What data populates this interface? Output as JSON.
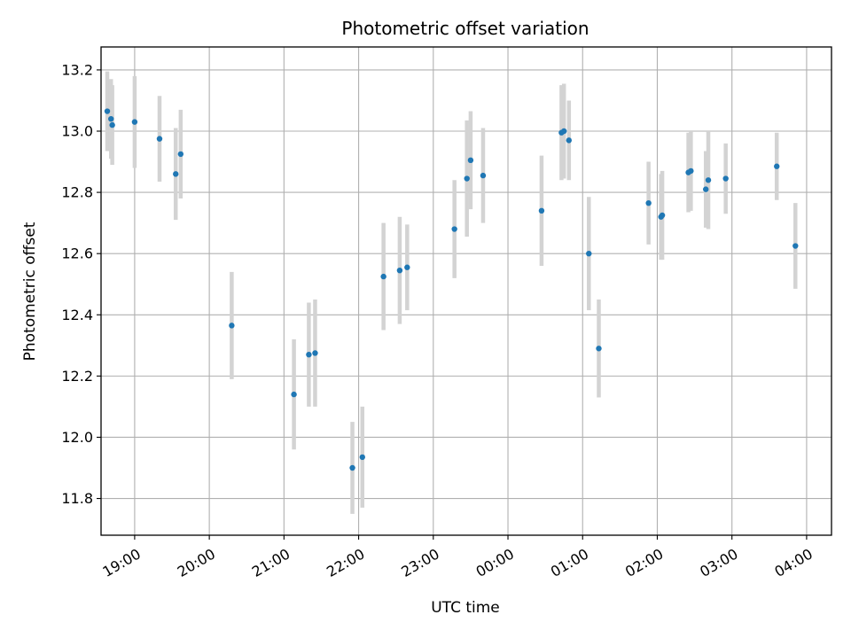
{
  "chart_data": {
    "type": "scatter",
    "title": "Photometric offset variation",
    "xlabel": "UTC time",
    "ylabel": "Photometric offset",
    "grid": true,
    "colors": {
      "point": "#1f77b4",
      "errorbar": "#d3d3d3",
      "grid": "#b0b0b0"
    },
    "xlim": [
      "18:33",
      "04:20"
    ],
    "ylim": [
      11.68,
      13.275
    ],
    "x_ticks": [
      "19:00",
      "20:00",
      "21:00",
      "22:00",
      "23:00",
      "00:00",
      "01:00",
      "02:00",
      "03:00",
      "04:00"
    ],
    "y_ticks": [
      "11.8",
      "12.0",
      "12.2",
      "12.4",
      "12.6",
      "12.8",
      "13.0",
      "13.2"
    ],
    "points": [
      {
        "x": "18:38",
        "y": 13.065,
        "yerr": 0.13
      },
      {
        "x": "18:41",
        "y": 13.04,
        "yerr": 0.13
      },
      {
        "x": "18:42",
        "y": 13.02,
        "yerr": 0.13
      },
      {
        "x": "19:00",
        "y": 13.03,
        "yerr": 0.15
      },
      {
        "x": "19:20",
        "y": 12.975,
        "yerr": 0.14
      },
      {
        "x": "19:33",
        "y": 12.86,
        "yerr": 0.15
      },
      {
        "x": "19:37",
        "y": 12.925,
        "yerr": 0.145
      },
      {
        "x": "20:18",
        "y": 12.365,
        "yerr": 0.175
      },
      {
        "x": "21:08",
        "y": 12.14,
        "yerr": 0.18
      },
      {
        "x": "21:20",
        "y": 12.27,
        "yerr": 0.17
      },
      {
        "x": "21:25",
        "y": 12.275,
        "yerr": 0.175
      },
      {
        "x": "21:55",
        "y": 11.9,
        "yerr": 0.15
      },
      {
        "x": "22:03",
        "y": 11.935,
        "yerr": 0.165
      },
      {
        "x": "22:20",
        "y": 12.525,
        "yerr": 0.175
      },
      {
        "x": "22:33",
        "y": 12.545,
        "yerr": 0.175
      },
      {
        "x": "22:39",
        "y": 12.555,
        "yerr": 0.14
      },
      {
        "x": "23:17",
        "y": 12.68,
        "yerr": 0.16
      },
      {
        "x": "23:27",
        "y": 12.845,
        "yerr": 0.19
      },
      {
        "x": "23:30",
        "y": 12.905,
        "yerr": 0.16
      },
      {
        "x": "23:40",
        "y": 12.855,
        "yerr": 0.155
      },
      {
        "x": "00:27",
        "y": 12.74,
        "yerr": 0.18
      },
      {
        "x": "00:43",
        "y": 12.995,
        "yerr": 0.155
      },
      {
        "x": "00:45",
        "y": 13.0,
        "yerr": 0.155
      },
      {
        "x": "00:49",
        "y": 12.97,
        "yerr": 0.13
      },
      {
        "x": "01:05",
        "y": 12.6,
        "yerr": 0.185
      },
      {
        "x": "01:13",
        "y": 12.29,
        "yerr": 0.16
      },
      {
        "x": "01:53",
        "y": 12.765,
        "yerr": 0.135
      },
      {
        "x": "02:03",
        "y": 12.72,
        "yerr": 0.14
      },
      {
        "x": "02:04",
        "y": 12.725,
        "yerr": 0.145
      },
      {
        "x": "02:25",
        "y": 12.865,
        "yerr": 0.13
      },
      {
        "x": "02:27",
        "y": 12.87,
        "yerr": 0.13
      },
      {
        "x": "02:39",
        "y": 12.81,
        "yerr": 0.125
      },
      {
        "x": "02:41",
        "y": 12.84,
        "yerr": 0.16
      },
      {
        "x": "02:55",
        "y": 12.845,
        "yerr": 0.115
      },
      {
        "x": "03:36",
        "y": 12.885,
        "yerr": 0.11
      },
      {
        "x": "03:51",
        "y": 12.625,
        "yerr": 0.14
      }
    ]
  }
}
